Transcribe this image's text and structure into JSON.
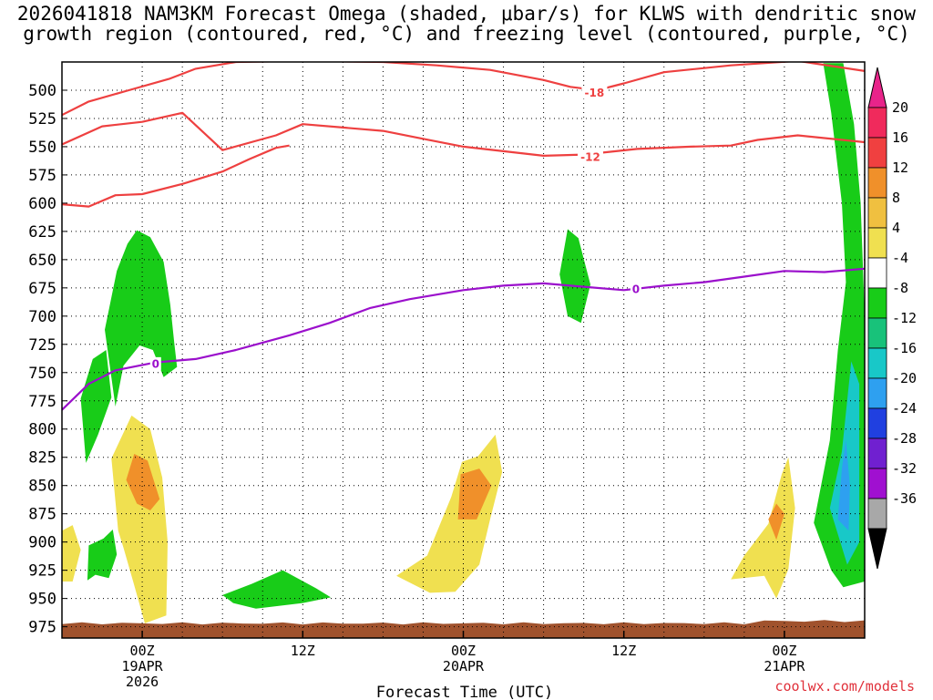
{
  "title": "2026041818 NAM3KM Forecast Omega (shaded, μbar/s) for KLWS with dendritic snow growth region (contoured, red, °C) and freezing level (contoured, purple, °C)",
  "credit": "coolwx.com/models",
  "chart_data": {
    "type": "time-height contour",
    "title": "2026041818 NAM3KM Forecast Omega (shaded, μbar/s) for KLWS with dendritic snow growth region (contoured, red, °C) and freezing level (contoured, purple, °C)",
    "xlabel": "Forecast Time (UTC)",
    "ylabel": "Pressure (hPa)",
    "x_range_hours": [
      -6,
      54
    ],
    "y_range_hpa": [
      475,
      985
    ],
    "y_ticks": [
      500,
      525,
      550,
      575,
      600,
      625,
      650,
      675,
      700,
      725,
      750,
      775,
      800,
      825,
      850,
      875,
      900,
      925,
      950,
      975
    ],
    "x_ticks": [
      {
        "hour": 0,
        "lines": [
          "00Z",
          "19APR",
          "2026"
        ]
      },
      {
        "hour": 12,
        "lines": [
          "12Z"
        ]
      },
      {
        "hour": 24,
        "lines": [
          "00Z",
          "20APR"
        ]
      },
      {
        "hour": 36,
        "lines": [
          "12Z"
        ]
      },
      {
        "hour": 48,
        "lines": [
          "00Z",
          "21APR"
        ]
      }
    ],
    "grid": true,
    "colorbar": {
      "labels": [
        "20",
        "16",
        "12",
        "8",
        "4",
        "-4",
        "-8",
        "-12",
        "-16",
        "-20",
        "-24",
        "-28",
        "-32",
        "-36"
      ],
      "colors": [
        "#f02a5c",
        "#f04040",
        "#f0902a",
        "#f0c040",
        "#f0e050",
        "#ffffff",
        "#18cc18",
        "#18c27a",
        "#18c8c8",
        "#2ea0f0",
        "#2040e0",
        "#7020d0",
        "#a010d0",
        "#a8a8a8"
      ],
      "top_arrow_color": "#e8248a",
      "bottom_arrow_color": "#000000"
    },
    "contours": [
      {
        "name": "dendritic-upper-minus18",
        "label": "-18",
        "color": "#ee4040",
        "points": [
          [
            -6,
            522
          ],
          [
            -4,
            510
          ],
          [
            -1,
            500
          ],
          [
            2,
            490
          ],
          [
            4,
            481
          ],
          [
            7,
            475
          ],
          [
            12,
            474
          ],
          [
            18,
            475
          ],
          [
            22,
            478
          ],
          [
            26,
            482
          ],
          [
            30,
            491
          ],
          [
            32,
            497
          ],
          [
            34,
            500
          ],
          [
            36,
            494
          ],
          [
            39,
            484
          ],
          [
            44,
            478
          ],
          [
            49,
            474
          ],
          [
            54,
            483
          ]
        ]
      },
      {
        "name": "dendritic-lower-minus12",
        "label": "-12",
        "color": "#ee4040",
        "points": [
          [
            -6,
            548
          ],
          [
            -3,
            532
          ],
          [
            0,
            528
          ],
          [
            3,
            520
          ],
          [
            6,
            553
          ],
          [
            10,
            540
          ],
          [
            12,
            530
          ],
          [
            15,
            533
          ],
          [
            18,
            536
          ],
          [
            21,
            543
          ],
          [
            24,
            550
          ],
          [
            27,
            554
          ],
          [
            30,
            558
          ],
          [
            33,
            557
          ],
          [
            37,
            552
          ],
          [
            41,
            550
          ],
          [
            44,
            549
          ],
          [
            46,
            544
          ],
          [
            49,
            540
          ],
          [
            54,
            546
          ]
        ]
      },
      {
        "name": "dendritic-lower-limb",
        "label": "",
        "color": "#ee4040",
        "points": [
          [
            -6,
            601
          ],
          [
            -4,
            603
          ],
          [
            -2,
            593
          ],
          [
            0,
            592
          ],
          [
            3,
            583
          ],
          [
            6,
            572
          ],
          [
            8,
            561
          ],
          [
            10,
            551
          ],
          [
            11,
            549
          ]
        ]
      },
      {
        "name": "freezing-level-0",
        "label": "0",
        "color": "#9b10cc",
        "points": [
          [
            -6,
            783
          ],
          [
            -4,
            760
          ],
          [
            -2,
            748
          ],
          [
            1,
            741
          ],
          [
            4,
            738
          ],
          [
            7,
            730
          ],
          [
            11,
            717
          ],
          [
            14,
            706
          ],
          [
            17,
            693
          ],
          [
            20,
            685
          ],
          [
            24,
            677
          ],
          [
            27,
            673
          ],
          [
            30,
            671
          ],
          [
            33,
            674
          ],
          [
            36,
            677
          ],
          [
            39,
            673
          ],
          [
            42,
            670
          ],
          [
            45,
            665
          ],
          [
            48,
            660
          ],
          [
            51,
            661
          ],
          [
            54,
            658
          ]
        ]
      }
    ],
    "omega_regions": [
      {
        "name": "upward-ascent-0.5z",
        "value_range": [
          -8,
          -4
        ],
        "color": "#18cc18",
        "points": [
          [
            -2,
            780
          ],
          [
            -2.8,
            712
          ],
          [
            -1.9,
            660
          ],
          [
            -1.1,
            636
          ],
          [
            -0.4,
            624
          ],
          [
            0.6,
            630
          ],
          [
            1.6,
            652
          ],
          [
            2.1,
            690
          ],
          [
            2.4,
            724
          ],
          [
            2.6,
            745
          ],
          [
            1.6,
            754
          ],
          [
            0.8,
            730
          ],
          [
            -0.2,
            726
          ],
          [
            -1.4,
            744
          ]
        ]
      },
      {
        "name": "upward-lower-left",
        "value_range": [
          -8,
          -4
        ],
        "color": "#18cc18",
        "points": [
          [
            -4.2,
            830
          ],
          [
            -4.6,
            773
          ],
          [
            -3.7,
            738
          ],
          [
            -2.7,
            730
          ],
          [
            -2.3,
            772
          ],
          [
            -3.3,
            805
          ]
        ]
      },
      {
        "name": "upward-small-925",
        "value_range": [
          -8,
          -4
        ],
        "color": "#18cc18",
        "points": [
          [
            -4.1,
            934
          ],
          [
            -4.0,
            903
          ],
          [
            -2.9,
            897
          ],
          [
            -2.2,
            889
          ],
          [
            -1.9,
            911
          ],
          [
            -2.5,
            932
          ],
          [
            -3.5,
            929
          ]
        ]
      },
      {
        "name": "upward-12z-low",
        "value_range": [
          -8,
          -4
        ],
        "color": "#18cc18",
        "points": [
          [
            6,
            947
          ],
          [
            8.2,
            937
          ],
          [
            10.5,
            925
          ],
          [
            13,
            941
          ],
          [
            14.1,
            949
          ],
          [
            12,
            954
          ],
          [
            8.5,
            959
          ],
          [
            6.8,
            954
          ]
        ]
      },
      {
        "name": "upward-20apr-mid",
        "value_range": [
          -8,
          -4
        ],
        "color": "#18cc18",
        "points": [
          [
            31.8,
            700
          ],
          [
            31.2,
            663
          ],
          [
            31.8,
            623
          ],
          [
            32.6,
            631
          ],
          [
            33.5,
            672
          ],
          [
            32.8,
            706
          ]
        ]
      },
      {
        "name": "upward-21apr-column",
        "value_range": [
          -8,
          -4
        ],
        "color": "#18cc18",
        "points": [
          [
            50.2,
            883
          ],
          [
            51.4,
            810
          ],
          [
            52,
            730
          ],
          [
            52.6,
            670
          ],
          [
            52.3,
            600
          ],
          [
            51.5,
            520
          ],
          [
            50.9,
            476
          ],
          [
            52.4,
            476
          ],
          [
            53.2,
            530
          ],
          [
            53.7,
            600
          ],
          [
            54,
            700
          ],
          [
            54,
            935
          ],
          [
            52.4,
            940
          ],
          [
            51.5,
            925
          ]
        ]
      },
      {
        "name": "upward-21apr-core",
        "value_range": [
          -16,
          -8
        ],
        "color": "#18c8c8",
        "points": [
          [
            51.4,
            870
          ],
          [
            52.3,
            820
          ],
          [
            53.0,
            740
          ],
          [
            53.6,
            760
          ],
          [
            53.6,
            900
          ],
          [
            52.7,
            920
          ]
        ]
      },
      {
        "name": "upward-21apr-center",
        "value_range": [
          -20,
          -16
        ],
        "color": "#2ea0f0",
        "points": [
          [
            52.0,
            880
          ],
          [
            52.3,
            835
          ],
          [
            52.6,
            810
          ],
          [
            52.9,
            850
          ],
          [
            52.8,
            890
          ]
        ]
      },
      {
        "name": "downward-0z-19apr",
        "value_range": [
          4,
          8
        ],
        "color": "#f0e050",
        "points": [
          [
            -1.8,
            890
          ],
          [
            -2.3,
            826
          ],
          [
            -0.8,
            788
          ],
          [
            0.6,
            800
          ],
          [
            1.5,
            843
          ],
          [
            1.9,
            900
          ],
          [
            1.8,
            965
          ],
          [
            0.2,
            972
          ],
          [
            -0.7,
            934
          ],
          [
            -1.4,
            905
          ]
        ]
      },
      {
        "name": "downward-0z-19apr-core",
        "value_range": [
          8,
          16
        ],
        "color": "#f0902a",
        "points": [
          [
            -1.2,
            845
          ],
          [
            -0.6,
            822
          ],
          [
            0.4,
            828
          ],
          [
            1.3,
            862
          ],
          [
            0.6,
            872
          ],
          [
            -0.4,
            866
          ]
        ]
      },
      {
        "name": "downward-left-edge",
        "value_range": [
          4,
          8
        ],
        "color": "#f0e050",
        "points": [
          [
            -6,
            935
          ],
          [
            -6,
            890
          ],
          [
            -5.2,
            885
          ],
          [
            -4.6,
            907
          ],
          [
            -5.2,
            935
          ]
        ]
      },
      {
        "name": "downward-20apr",
        "value_range": [
          4,
          8
        ],
        "color": "#f0e050",
        "points": [
          [
            19,
            930
          ],
          [
            21.3,
            912
          ],
          [
            23.1,
            860
          ],
          [
            23.9,
            829
          ],
          [
            25.1,
            824
          ],
          [
            26.4,
            805
          ],
          [
            26.9,
            838
          ],
          [
            26,
            880
          ],
          [
            25.2,
            920
          ],
          [
            23.4,
            944
          ],
          [
            21.5,
            945
          ]
        ]
      },
      {
        "name": "downward-20apr-core",
        "value_range": [
          8,
          16
        ],
        "color": "#f0902a",
        "points": [
          [
            23.6,
            880
          ],
          [
            23.8,
            840
          ],
          [
            25.2,
            835
          ],
          [
            26.1,
            850
          ],
          [
            25,
            880
          ]
        ]
      },
      {
        "name": "downward-21apr-lead",
        "value_range": [
          4,
          8
        ],
        "color": "#f0e050",
        "points": [
          [
            44,
            933
          ],
          [
            45,
            912
          ],
          [
            46.8,
            884
          ],
          [
            47.8,
            840
          ],
          [
            48.3,
            825
          ],
          [
            48.8,
            870
          ],
          [
            48.3,
            924
          ],
          [
            47.4,
            950
          ],
          [
            46.5,
            930
          ]
        ]
      },
      {
        "name": "downward-21apr-core",
        "value_range": [
          8,
          16
        ],
        "color": "#f0902a",
        "points": [
          [
            46.8,
            880
          ],
          [
            47.4,
            866
          ],
          [
            48.0,
            875
          ],
          [
            47.4,
            898
          ]
        ]
      }
    ],
    "contour_labels": [
      {
        "text": "-18",
        "hour": 33.8,
        "hpa": 502,
        "color": "#ee4040"
      },
      {
        "text": "-12",
        "hour": 33.5,
        "hpa": 559,
        "color": "#ee4040"
      },
      {
        "text": "0",
        "hour": 1.0,
        "hpa": 742,
        "color": "#9b10cc"
      },
      {
        "text": "0",
        "hour": 36.9,
        "hpa": 676,
        "color": "#9b10cc"
      }
    ],
    "ground": {
      "color": "#a0522d",
      "top_hpa": 972
    }
  }
}
